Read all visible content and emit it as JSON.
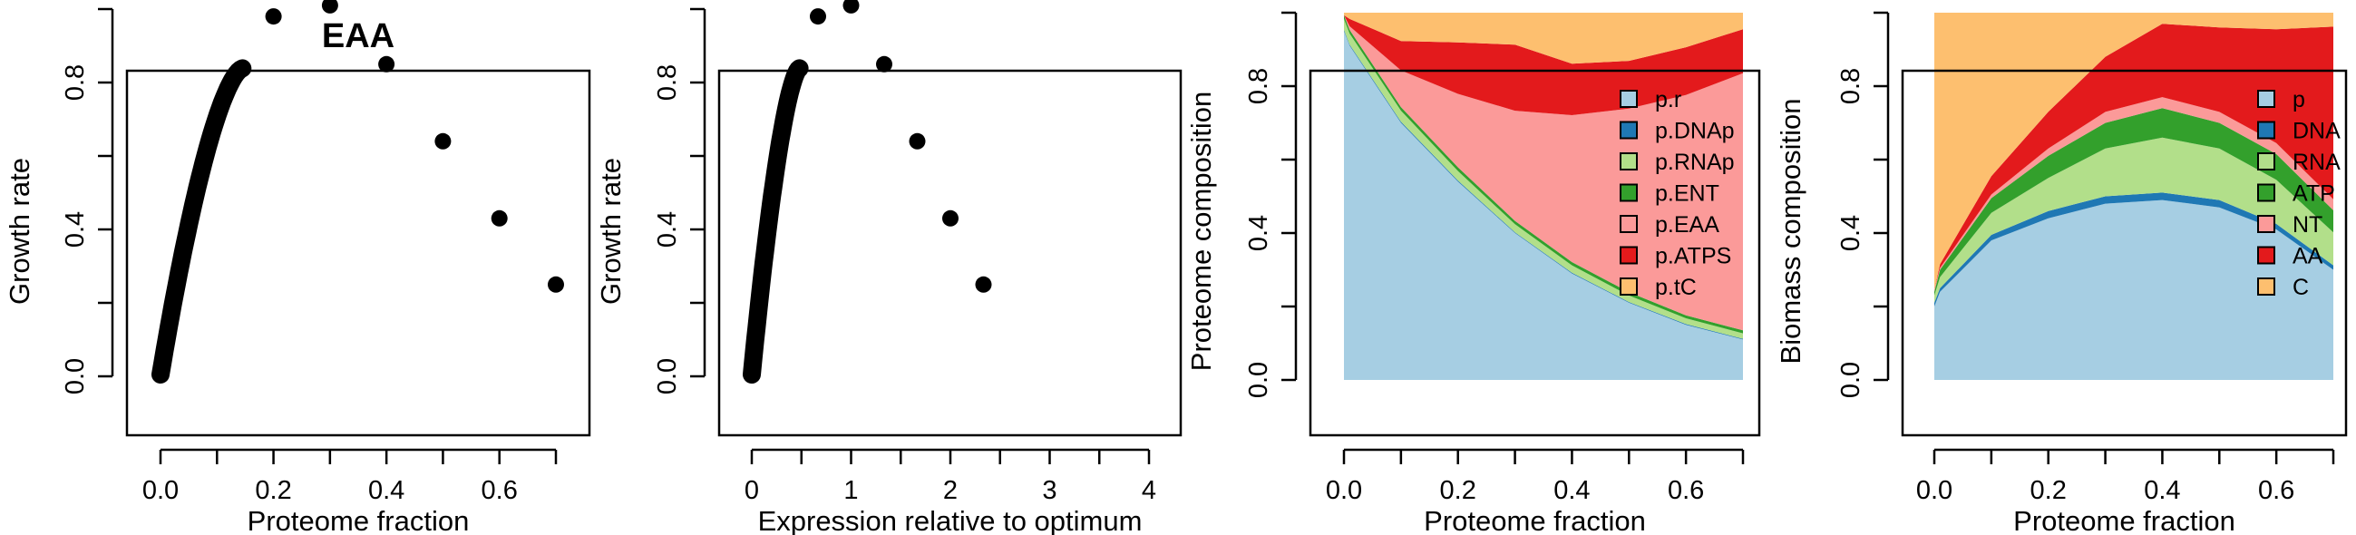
{
  "chart_data": [
    {
      "type": "scatter",
      "title": "EAA",
      "xlabel": "Proteome fraction",
      "ylabel": "Growth rate",
      "xlim": [
        0,
        0.7
      ],
      "ylim": [
        0,
        1.0
      ],
      "xticks": [
        "0.0",
        "0.2",
        "0.4",
        "0.6"
      ],
      "yticks": [
        "0.0",
        "0.4",
        "0.8"
      ],
      "curve": {
        "from": 0.0,
        "to": 0.145,
        "peak": 0.83
      },
      "points": [
        {
          "x": 0.2,
          "y": 0.98
        },
        {
          "x": 0.3,
          "y": 1.01
        },
        {
          "x": 0.4,
          "y": 0.85
        },
        {
          "x": 0.5,
          "y": 0.64
        },
        {
          "x": 0.6,
          "y": 0.43
        },
        {
          "x": 0.7,
          "y": 0.25
        }
      ]
    },
    {
      "type": "scatter",
      "title": "",
      "xlabel": "Expression relative to optimum",
      "ylabel": "Growth rate",
      "xlim": [
        0,
        4
      ],
      "ylim": [
        0,
        1.0
      ],
      "xticks": [
        "0",
        "1",
        "2",
        "3",
        "4"
      ],
      "yticks": [
        "0.0",
        "0.4",
        "0.8"
      ],
      "curve": {
        "from": 0.0,
        "to": 0.48,
        "peak": 0.83
      },
      "points": [
        {
          "x": 0.667,
          "y": 0.98
        },
        {
          "x": 1.0,
          "y": 1.01
        },
        {
          "x": 1.333,
          "y": 0.85
        },
        {
          "x": 1.667,
          "y": 0.64
        },
        {
          "x": 2.0,
          "y": 0.43
        },
        {
          "x": 2.333,
          "y": 0.25
        }
      ]
    },
    {
      "type": "area",
      "title": "",
      "xlabel": "Proteome fraction",
      "ylabel": "Proteome composition",
      "xlim": [
        0,
        0.7
      ],
      "ylim": [
        0,
        1.0
      ],
      "xticks": [
        "0.0",
        "0.2",
        "0.4",
        "0.6"
      ],
      "yticks": [
        "0.0",
        "0.4",
        "0.8"
      ],
      "x": [
        0.0,
        0.01,
        0.1,
        0.2,
        0.3,
        0.4,
        0.5,
        0.6,
        0.7
      ],
      "series": [
        {
          "name": "p.r",
          "color": "#a6cee3",
          "values": [
            0.95,
            0.91,
            0.7,
            0.54,
            0.4,
            0.29,
            0.21,
            0.15,
            0.11
          ]
        },
        {
          "name": "p.DNAp",
          "color": "#1f78b4",
          "values": [
            0.003,
            0.003,
            0.003,
            0.003,
            0.002,
            0.002,
            0.002,
            0.002,
            0.002
          ]
        },
        {
          "name": "p.RNAp",
          "color": "#b2df8a",
          "values": [
            0.03,
            0.03,
            0.03,
            0.026,
            0.022,
            0.02,
            0.018,
            0.016,
            0.015
          ]
        },
        {
          "name": "p.ENT",
          "color": "#33a02c",
          "values": [
            0.01,
            0.01,
            0.01,
            0.01,
            0.009,
            0.009,
            0.009,
            0.008,
            0.008
          ]
        },
        {
          "name": "p.EAA",
          "color": "#fb9a99",
          "values": [
            0.0,
            0.01,
            0.1,
            0.2,
            0.3,
            0.4,
            0.5,
            0.6,
            0.7
          ]
        },
        {
          "name": "p.ATPS",
          "color": "#e31a1c",
          "values": [
            0.0,
            0.02,
            0.08,
            0.14,
            0.18,
            0.14,
            0.13,
            0.13,
            0.12
          ]
        },
        {
          "name": "p.tC",
          "color": "#fdbf6f",
          "values": [
            0.007,
            0.017,
            0.077,
            0.081,
            0.087,
            0.139,
            0.131,
            0.094,
            0.045
          ]
        }
      ]
    },
    {
      "type": "area",
      "title": "",
      "xlabel": "Proteome fraction",
      "ylabel": "Biomass composition",
      "xlim": [
        0,
        0.7
      ],
      "ylim": [
        0,
        1.0
      ],
      "xticks": [
        "0.0",
        "0.2",
        "0.4",
        "0.6"
      ],
      "yticks": [
        "0.0",
        "0.4",
        "0.8"
      ],
      "x": [
        0.0,
        0.01,
        0.1,
        0.2,
        0.3,
        0.4,
        0.5,
        0.6,
        0.7
      ],
      "series": [
        {
          "name": "p",
          "color": "#a6cee3",
          "values": [
            0.2,
            0.24,
            0.38,
            0.44,
            0.48,
            0.49,
            0.47,
            0.41,
            0.3
          ]
        },
        {
          "name": "DNA",
          "color": "#1f78b4",
          "values": [
            0.01,
            0.01,
            0.015,
            0.02,
            0.02,
            0.02,
            0.02,
            0.015,
            0.012
          ]
        },
        {
          "name": "RNA",
          "color": "#b2df8a",
          "values": [
            0.02,
            0.03,
            0.06,
            0.09,
            0.13,
            0.15,
            0.14,
            0.12,
            0.09
          ]
        },
        {
          "name": "ATP",
          "color": "#33a02c",
          "values": [
            0.01,
            0.02,
            0.04,
            0.06,
            0.07,
            0.08,
            0.07,
            0.07,
            0.06
          ]
        },
        {
          "name": "NT",
          "color": "#fb9a99",
          "values": [
            0.005,
            0.005,
            0.01,
            0.02,
            0.03,
            0.03,
            0.03,
            0.03,
            0.03
          ]
        },
        {
          "name": "AA",
          "color": "#e31a1c",
          "values": [
            0.0,
            0.01,
            0.05,
            0.1,
            0.15,
            0.2,
            0.23,
            0.31,
            0.47
          ]
        },
        {
          "name": "C",
          "color": "#fdbf6f",
          "values": [
            0.755,
            0.685,
            0.445,
            0.27,
            0.12,
            0.03,
            0.04,
            0.045,
            0.038
          ]
        }
      ]
    }
  ]
}
